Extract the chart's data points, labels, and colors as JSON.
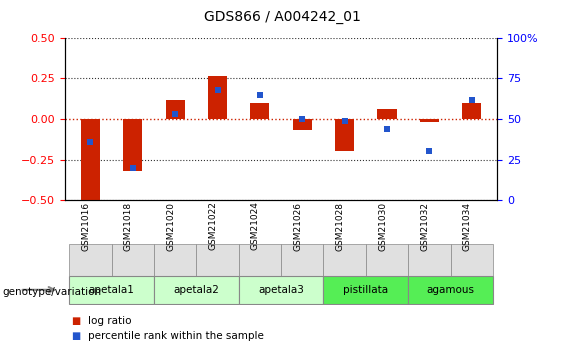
{
  "title": "GDS866 / A004242_01",
  "samples": [
    "GSM21016",
    "GSM21018",
    "GSM21020",
    "GSM21022",
    "GSM21024",
    "GSM21026",
    "GSM21028",
    "GSM21030",
    "GSM21032",
    "GSM21034"
  ],
  "log_ratios": [
    -0.51,
    -0.32,
    0.12,
    0.265,
    0.1,
    -0.07,
    -0.2,
    0.06,
    -0.02,
    0.1
  ],
  "percentile_ranks": [
    36,
    20,
    53,
    68,
    65,
    50,
    49,
    44,
    30,
    62
  ],
  "groups": [
    {
      "name": "apetala1",
      "indices": [
        0,
        1
      ],
      "color": "#ccffcc"
    },
    {
      "name": "apetala2",
      "indices": [
        2,
        3
      ],
      "color": "#ccffcc"
    },
    {
      "name": "apetala3",
      "indices": [
        4,
        5
      ],
      "color": "#ccffcc"
    },
    {
      "name": "pistillata",
      "indices": [
        6,
        7
      ],
      "color": "#55ee55"
    },
    {
      "name": "agamous",
      "indices": [
        8,
        9
      ],
      "color": "#55ee55"
    }
  ],
  "ylim_left": [
    -0.5,
    0.5
  ],
  "ylim_right": [
    0,
    100
  ],
  "yticks_left": [
    -0.5,
    -0.25,
    0.0,
    0.25,
    0.5
  ],
  "yticks_right": [
    0,
    25,
    50,
    75,
    100
  ],
  "bar_color": "#cc2200",
  "dot_color": "#2255cc",
  "zero_line_color": "#cc2200",
  "dotted_line_color": "#333333",
  "legend_log_ratio": "log ratio",
  "legend_percentile": "percentile rank within the sample"
}
